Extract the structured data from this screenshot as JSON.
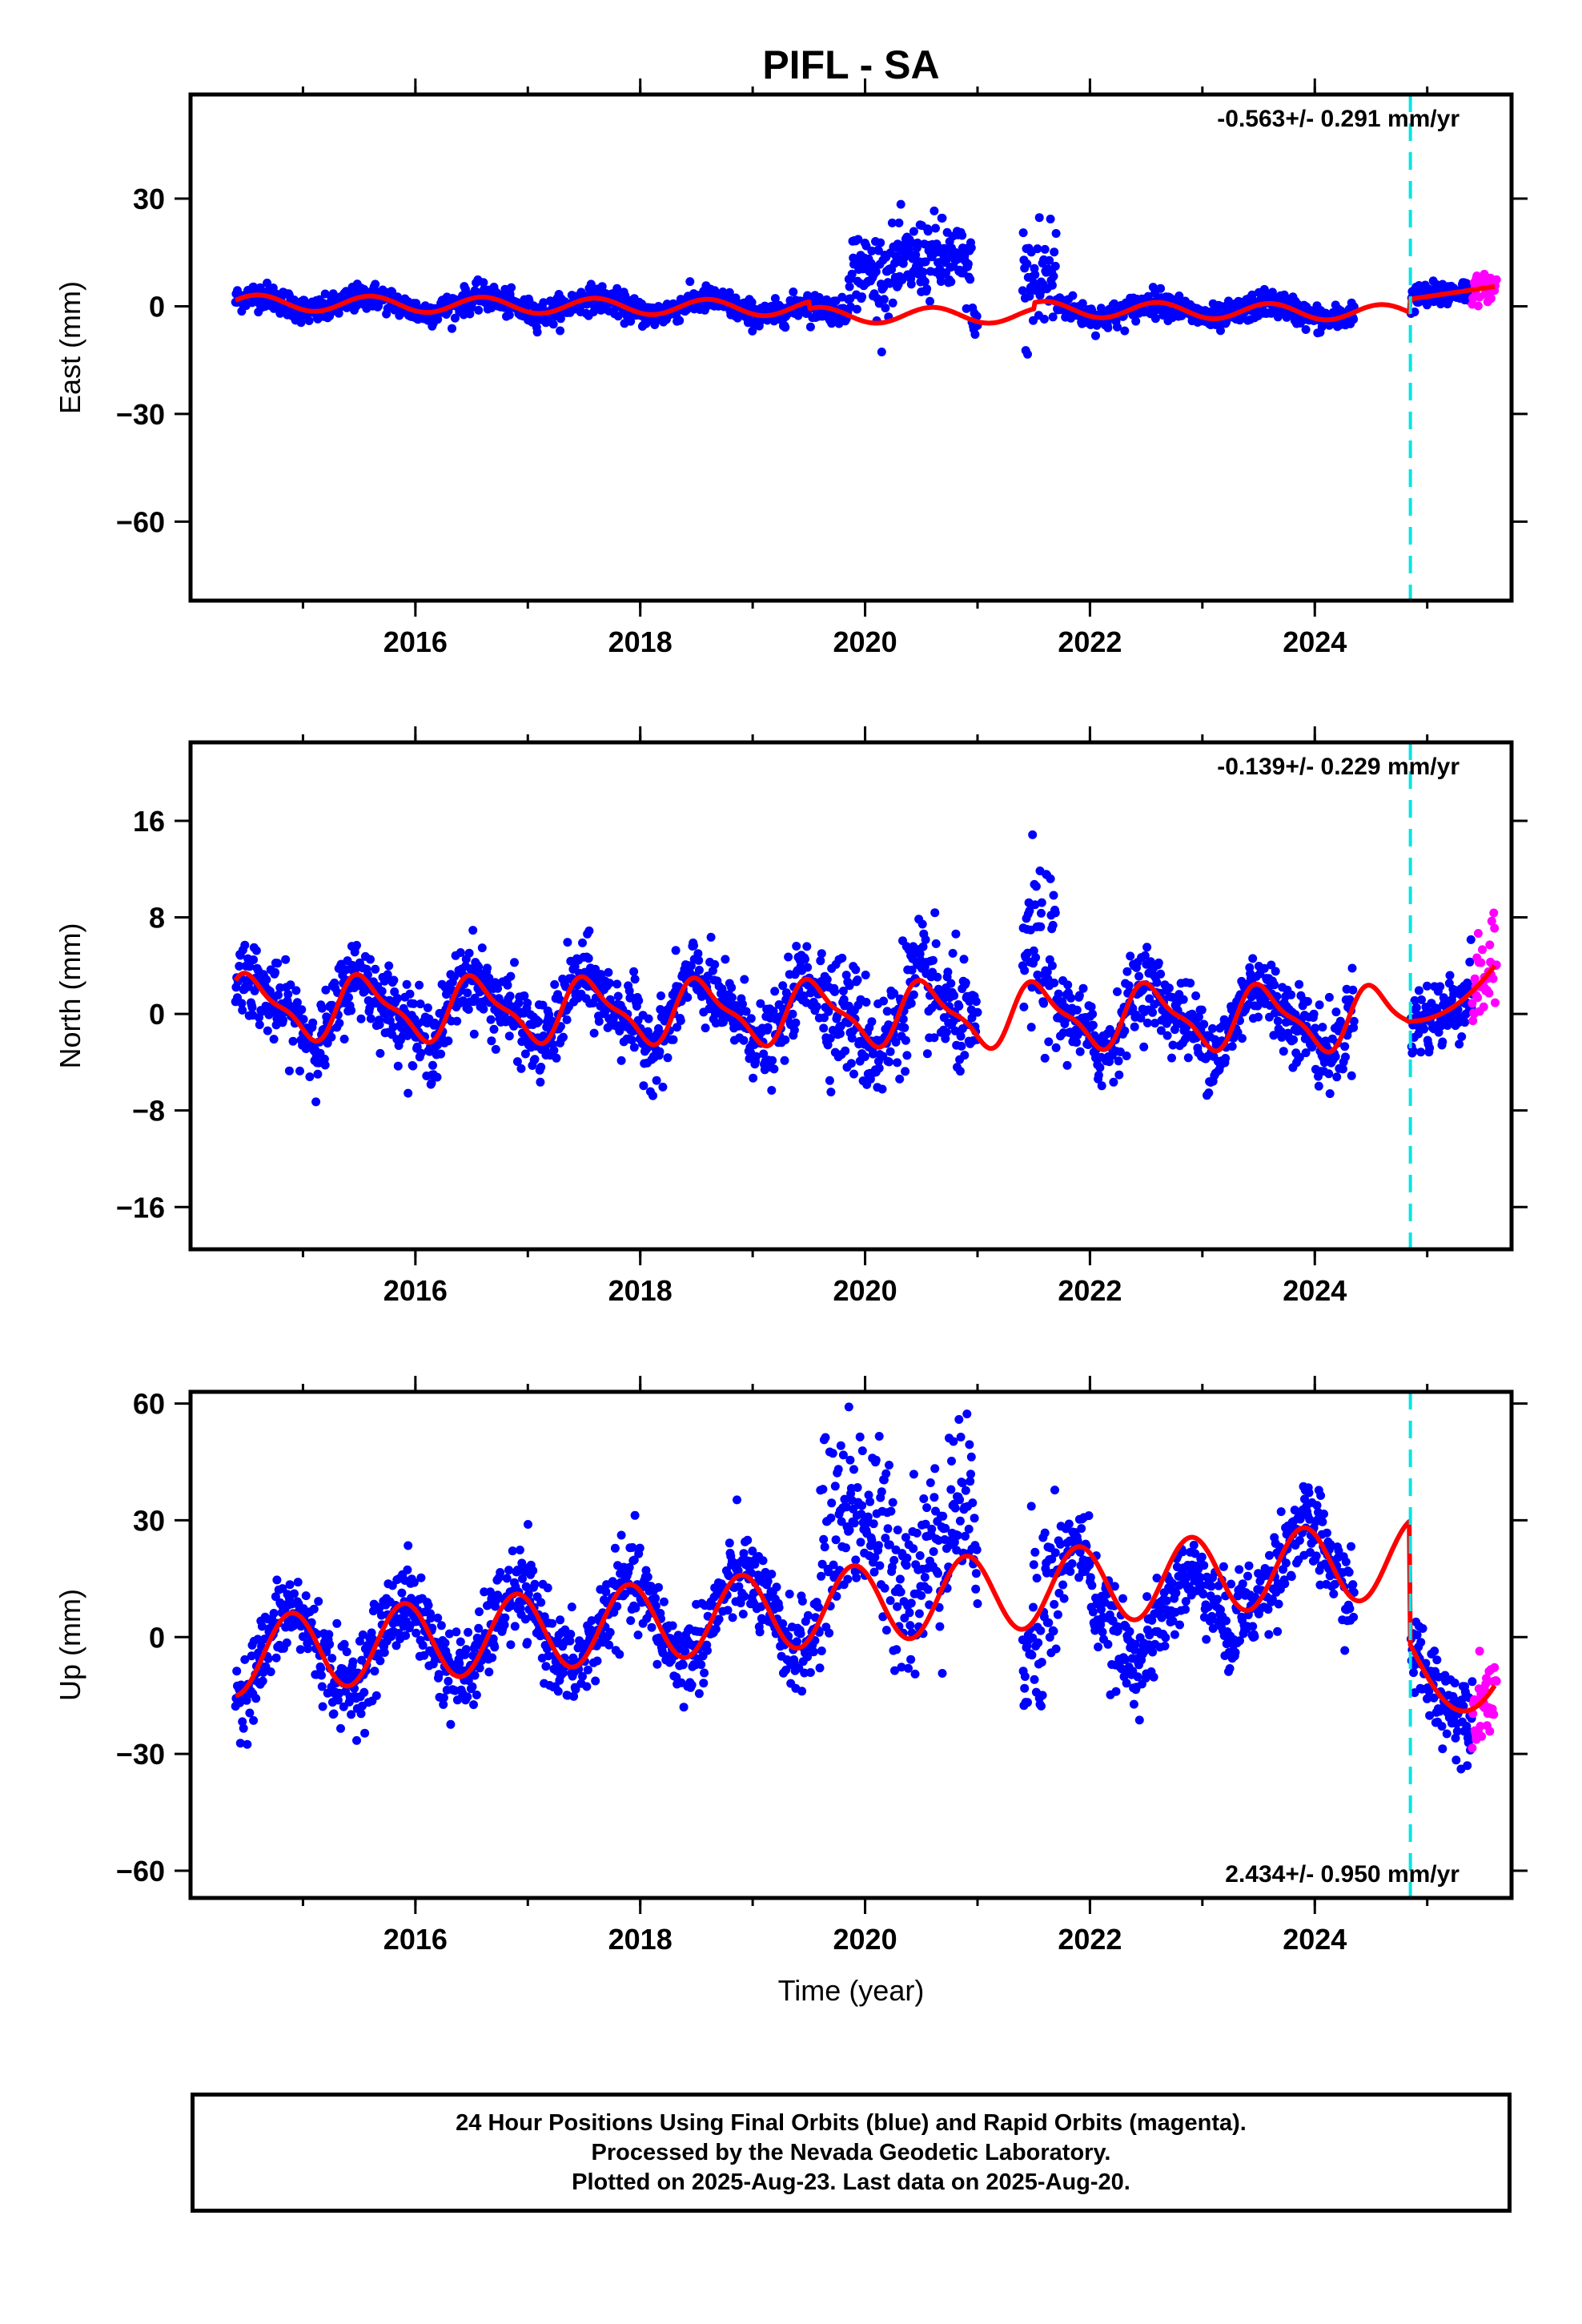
{
  "title": "PIFL - SA",
  "colors": {
    "final_orbits": "#0000ff",
    "rapid_orbits": "#ff00ff",
    "model_fit": "#ff0000",
    "equipment_change": "#00e5e5"
  },
  "equipment_change_year": 2024.85,
  "chart_data": [
    {
      "type": "scatter",
      "ylabel": "East (mm)",
      "xlabel": "",
      "rate_text": "-0.563+/- 0.291 mm/yr",
      "rate_position": "top-right",
      "xlim": [
        2014.0,
        2025.75
      ],
      "ylim": [
        -82,
        59
      ],
      "x_ticks": [
        2016,
        2018,
        2020,
        2022,
        2024
      ],
      "x_tick_labels": [
        "2016",
        "2018",
        "2020",
        "2022",
        "2024"
      ],
      "y_ticks": [
        30,
        0,
        -30,
        -60
      ],
      "y_tick_labels": [
        "30",
        "0",
        "−30",
        "−60"
      ],
      "series": [
        {
          "role": "final_orbits",
          "style": "points"
        },
        {
          "role": "rapid_orbits",
          "style": "points",
          "x_range": [
            2025.4,
            2025.62
          ]
        },
        {
          "role": "model_fit",
          "style": "line"
        }
      ]
    },
    {
      "type": "scatter",
      "ylabel": "North (mm)",
      "xlabel": "",
      "rate_text": "-0.139+/- 0.229 mm/yr",
      "rate_position": "top-right",
      "xlim": [
        2014.0,
        2025.75
      ],
      "ylim": [
        -19.5,
        22.5
      ],
      "x_ticks": [
        2016,
        2018,
        2020,
        2022,
        2024
      ],
      "x_tick_labels": [
        "2016",
        "2018",
        "2020",
        "2022",
        "2024"
      ],
      "y_ticks": [
        16,
        8,
        0,
        -8,
        -16
      ],
      "y_tick_labels": [
        "16",
        "8",
        "0",
        "−8",
        "−16"
      ],
      "series": [
        {
          "role": "final_orbits",
          "style": "points"
        },
        {
          "role": "rapid_orbits",
          "style": "points",
          "x_range": [
            2025.4,
            2025.62
          ]
        },
        {
          "role": "model_fit",
          "style": "line"
        }
      ]
    },
    {
      "type": "scatter",
      "ylabel": "Up (mm)",
      "xlabel": "Time (year)",
      "rate_text": "2.434+/- 0.950 mm/yr",
      "rate_position": "bottom-right",
      "xlim": [
        2014.0,
        2025.75
      ],
      "ylim": [
        -67,
        63
      ],
      "x_ticks": [
        2016,
        2018,
        2020,
        2022,
        2024
      ],
      "x_tick_labels": [
        "2016",
        "2018",
        "2020",
        "2022",
        "2024"
      ],
      "y_ticks": [
        60,
        30,
        0,
        -30,
        -60
      ],
      "y_tick_labels": [
        "60",
        "30",
        "0",
        "−30",
        "−60"
      ],
      "series": [
        {
          "role": "final_orbits",
          "style": "points"
        },
        {
          "role": "rapid_orbits",
          "style": "points",
          "x_range": [
            2025.4,
            2025.62
          ]
        },
        {
          "role": "model_fit",
          "style": "line"
        }
      ]
    }
  ],
  "caption": {
    "line1": "24 Hour Positions Using Final Orbits (blue) and Rapid Orbits (magenta).",
    "line2": "Processed by the Nevada Geodetic Laboratory.",
    "line3": "Plotted on 2025-Aug-23. Last data on 2025-Aug-20."
  }
}
